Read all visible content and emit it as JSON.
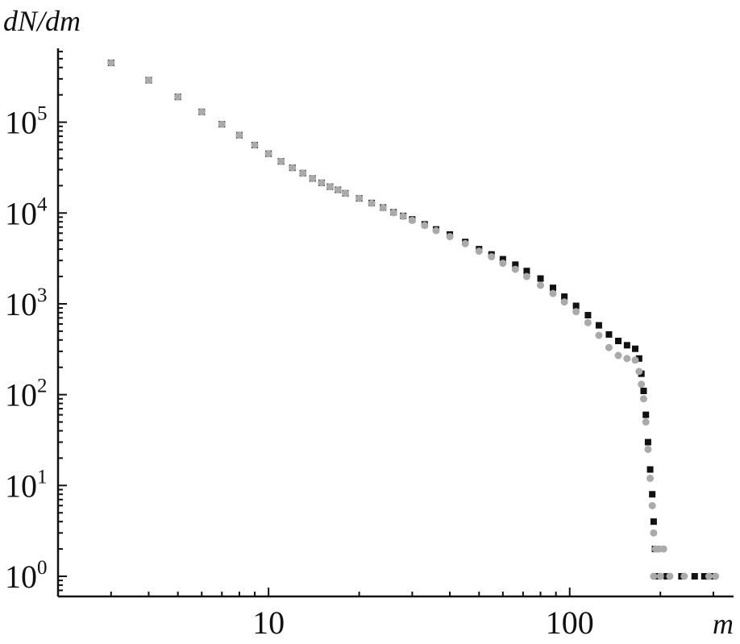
{
  "chart_data": {
    "type": "scatter",
    "title": "",
    "xlabel": "m",
    "ylabel": "dN/dm",
    "xscale": "log",
    "yscale": "log",
    "xlim": [
      2.0,
      350
    ],
    "ylim": [
      0.6,
      650000
    ],
    "grid": false,
    "legend": "none",
    "x_ticks": [
      {
        "value": 10,
        "label": "10"
      },
      {
        "value": 100,
        "label": "100"
      }
    ],
    "y_ticks": [
      {
        "value": 1,
        "base": "10",
        "exp": "0"
      },
      {
        "value": 10,
        "base": "10",
        "exp": "1"
      },
      {
        "value": 100,
        "base": "10",
        "exp": "2"
      },
      {
        "value": 1000,
        "base": "10",
        "exp": "3"
      },
      {
        "value": 10000,
        "base": "10",
        "exp": "4"
      },
      {
        "value": 100000,
        "base": "10",
        "exp": "5"
      }
    ],
    "series": [
      {
        "color": "#111111",
        "marker": "square",
        "points": [
          [
            3,
            450000
          ],
          [
            4,
            290000
          ],
          [
            5,
            190000
          ],
          [
            6,
            130000
          ],
          [
            7,
            95000
          ],
          [
            8,
            72000
          ],
          [
            9,
            56000
          ],
          [
            10,
            45000
          ],
          [
            11,
            37000
          ],
          [
            12,
            31500
          ],
          [
            13,
            27500
          ],
          [
            14,
            24000
          ],
          [
            15,
            21500
          ],
          [
            16,
            19500
          ],
          [
            17,
            18000
          ],
          [
            18,
            16500
          ],
          [
            20,
            14500
          ],
          [
            22,
            12900
          ],
          [
            24,
            11500
          ],
          [
            26,
            10200
          ],
          [
            28,
            9300
          ],
          [
            30,
            8500
          ],
          [
            33,
            7500
          ],
          [
            36,
            6600
          ],
          [
            40,
            5800
          ],
          [
            45,
            4800
          ],
          [
            50,
            4000
          ],
          [
            55,
            3500
          ],
          [
            60,
            3100
          ],
          [
            66,
            2700
          ],
          [
            72,
            2300
          ],
          [
            80,
            1900
          ],
          [
            88,
            1500
          ],
          [
            96,
            1200
          ],
          [
            105,
            950
          ],
          [
            115,
            750
          ],
          [
            125,
            580
          ],
          [
            135,
            460
          ],
          [
            145,
            390
          ],
          [
            155,
            350
          ],
          [
            165,
            320
          ],
          [
            170,
            250
          ],
          [
            173,
            170
          ],
          [
            176,
            110
          ],
          [
            179,
            60
          ],
          [
            182,
            30
          ],
          [
            185,
            15
          ],
          [
            188,
            8
          ],
          [
            190,
            4
          ],
          [
            192,
            2
          ],
          [
            195,
            1
          ],
          [
            210,
            1
          ],
          [
            235,
            1
          ],
          [
            260,
            1
          ],
          [
            280,
            1
          ],
          [
            300,
            1
          ]
        ]
      },
      {
        "color": "#aaaaaa",
        "marker": "circle",
        "points": [
          [
            3,
            450000
          ],
          [
            4,
            290000
          ],
          [
            5,
            190000
          ],
          [
            6,
            130000
          ],
          [
            7,
            95000
          ],
          [
            8,
            72000
          ],
          [
            9,
            56000
          ],
          [
            10,
            45000
          ],
          [
            11,
            37000
          ],
          [
            12,
            31500
          ],
          [
            13,
            27500
          ],
          [
            14,
            24000
          ],
          [
            15,
            21500
          ],
          [
            16,
            19500
          ],
          [
            17,
            18000
          ],
          [
            18,
            16500
          ],
          [
            20,
            14500
          ],
          [
            22,
            12800
          ],
          [
            24,
            11400
          ],
          [
            26,
            10100
          ],
          [
            28,
            9200
          ],
          [
            30,
            8300
          ],
          [
            33,
            7300
          ],
          [
            36,
            6400
          ],
          [
            40,
            5500
          ],
          [
            45,
            4600
          ],
          [
            50,
            3800
          ],
          [
            55,
            3300
          ],
          [
            60,
            2800
          ],
          [
            66,
            2400
          ],
          [
            72,
            2000
          ],
          [
            80,
            1600
          ],
          [
            88,
            1300
          ],
          [
            96,
            1050
          ],
          [
            105,
            820
          ],
          [
            115,
            620
          ],
          [
            125,
            450
          ],
          [
            135,
            330
          ],
          [
            145,
            270
          ],
          [
            155,
            250
          ],
          [
            165,
            240
          ],
          [
            170,
            180
          ],
          [
            173,
            130
          ],
          [
            176,
            90
          ],
          [
            179,
            50
          ],
          [
            182,
            25
          ],
          [
            185,
            12
          ],
          [
            188,
            6
          ],
          [
            190,
            3
          ],
          [
            193,
            2
          ],
          [
            198,
            2
          ],
          [
            205,
            2
          ],
          [
            190,
            1
          ],
          [
            200,
            1
          ],
          [
            215,
            1
          ],
          [
            240,
            1
          ],
          [
            290,
            1
          ],
          [
            305,
            1
          ]
        ]
      }
    ]
  }
}
